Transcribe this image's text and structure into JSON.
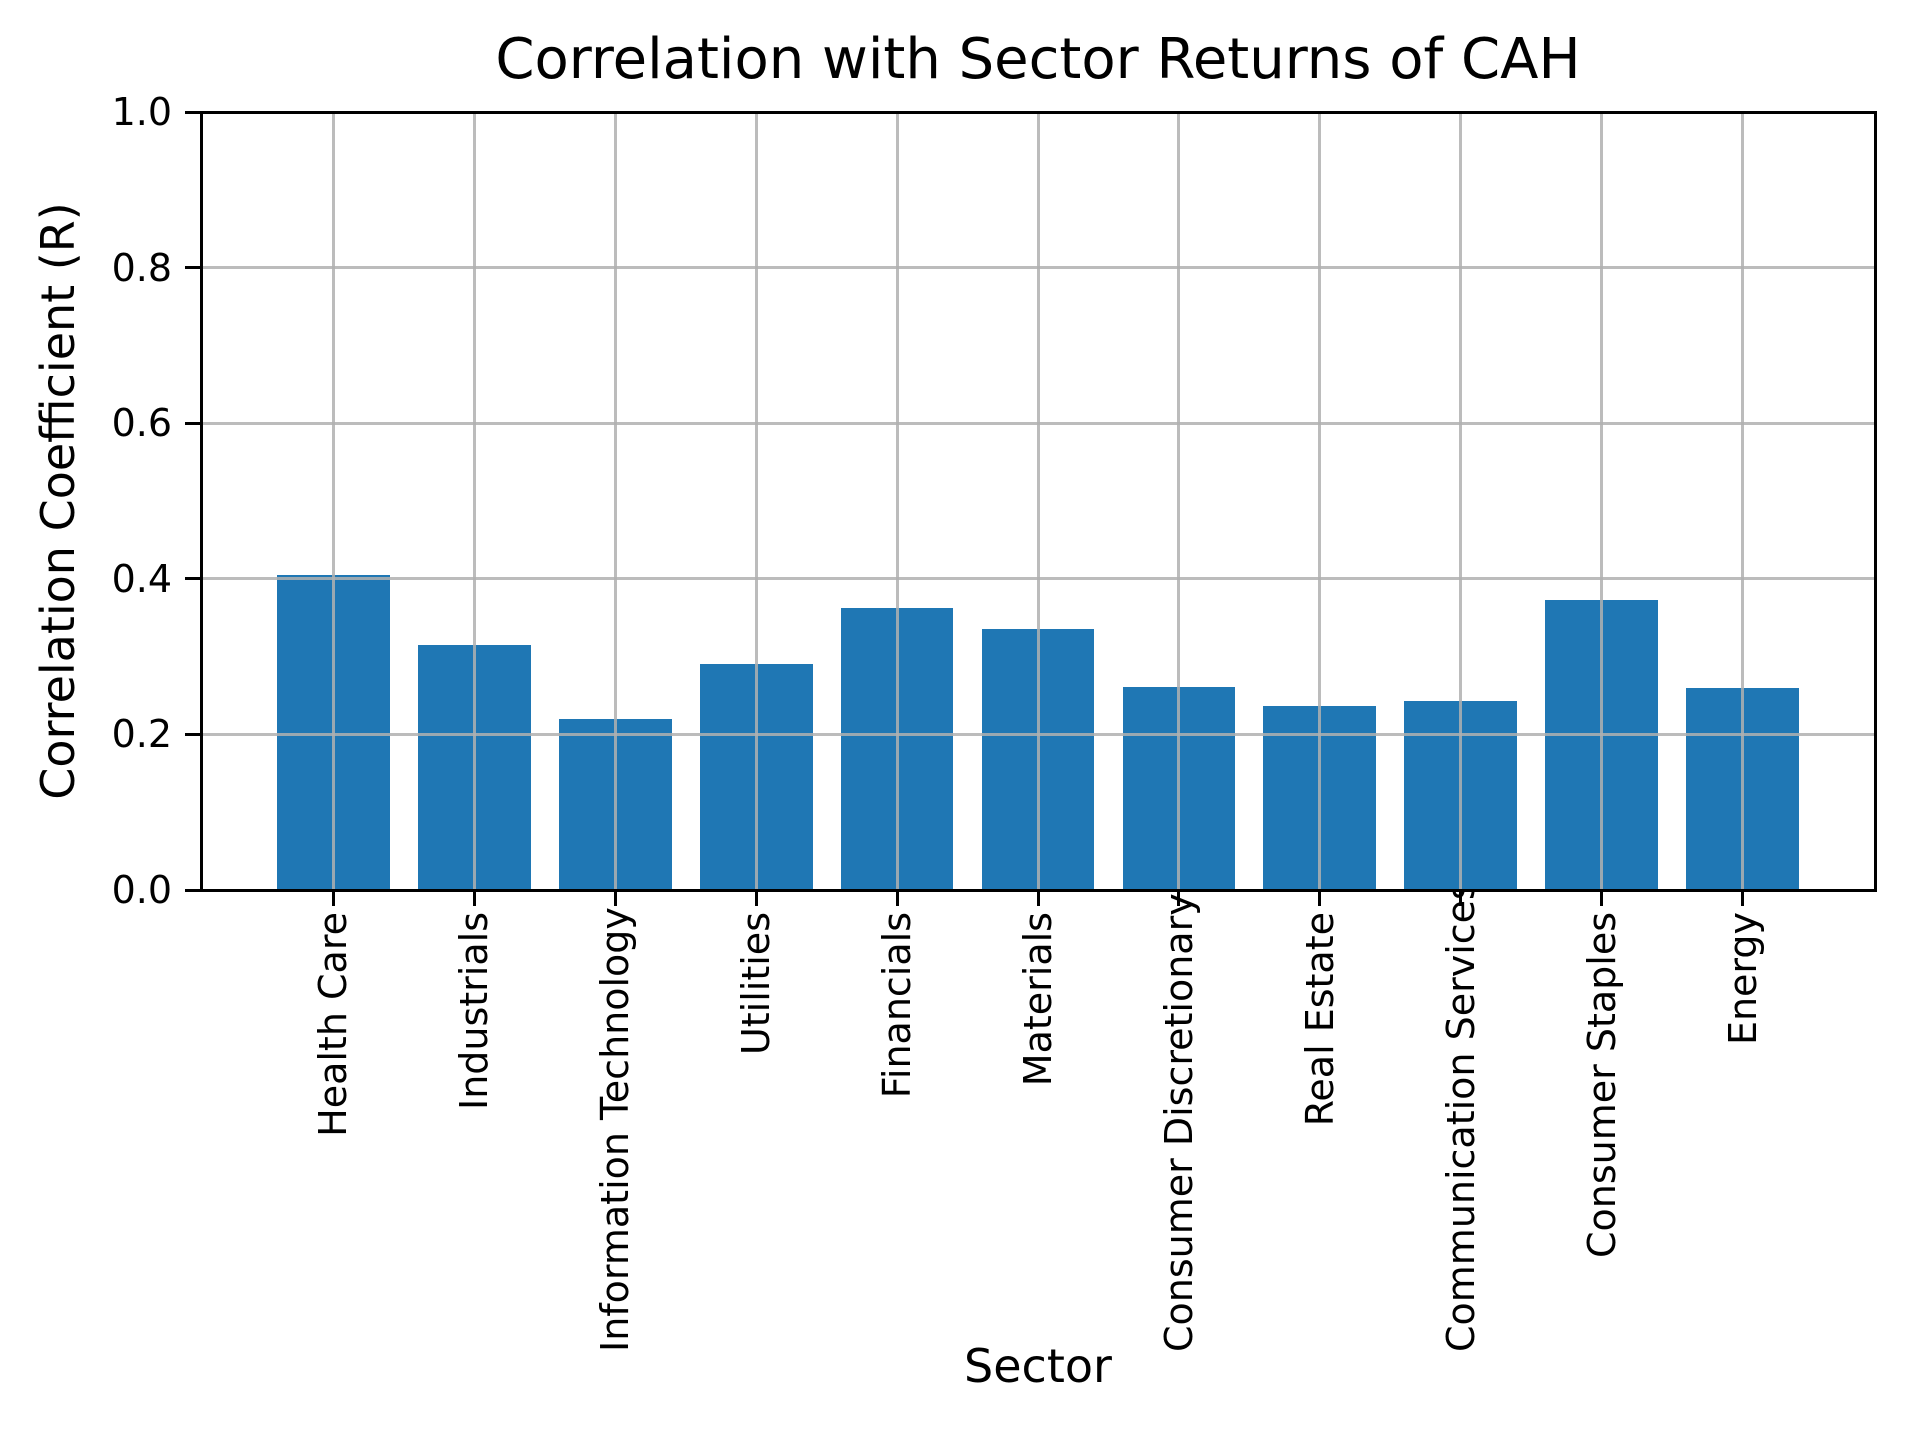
{
  "figure": {
    "background_color": "#ffffff",
    "text_color": "#000000"
  },
  "chart_data": {
    "type": "bar",
    "title": "Correlation with Sector Returns of CAH",
    "xlabel": "Sector",
    "ylabel": "Correlation Coefficient (R)",
    "categories": [
      "Health Care",
      "Industrials",
      "Information Technology",
      "Utilities",
      "Financials",
      "Materials",
      "Consumer Discretionary",
      "Real Estate",
      "Communication Services",
      "Consumer Staples",
      "Energy"
    ],
    "values": [
      0.405,
      0.315,
      0.22,
      0.291,
      0.362,
      0.336,
      0.261,
      0.236,
      0.243,
      0.373,
      0.26
    ],
    "ylim": [
      0.0,
      1.0
    ],
    "yticks": [
      0.0,
      0.2,
      0.4,
      0.6,
      0.8,
      1.0
    ],
    "ytick_labels": [
      "0.0",
      "0.2",
      "0.4",
      "0.6",
      "0.8",
      "1.0"
    ],
    "grid": true,
    "grid_on_top_of_bars": true,
    "legend": "none",
    "bar_color": "#1f77b4",
    "grid_color": "#b0b0b0",
    "axis_color": "#000000",
    "xtick_label_rotation_deg": 90
  }
}
